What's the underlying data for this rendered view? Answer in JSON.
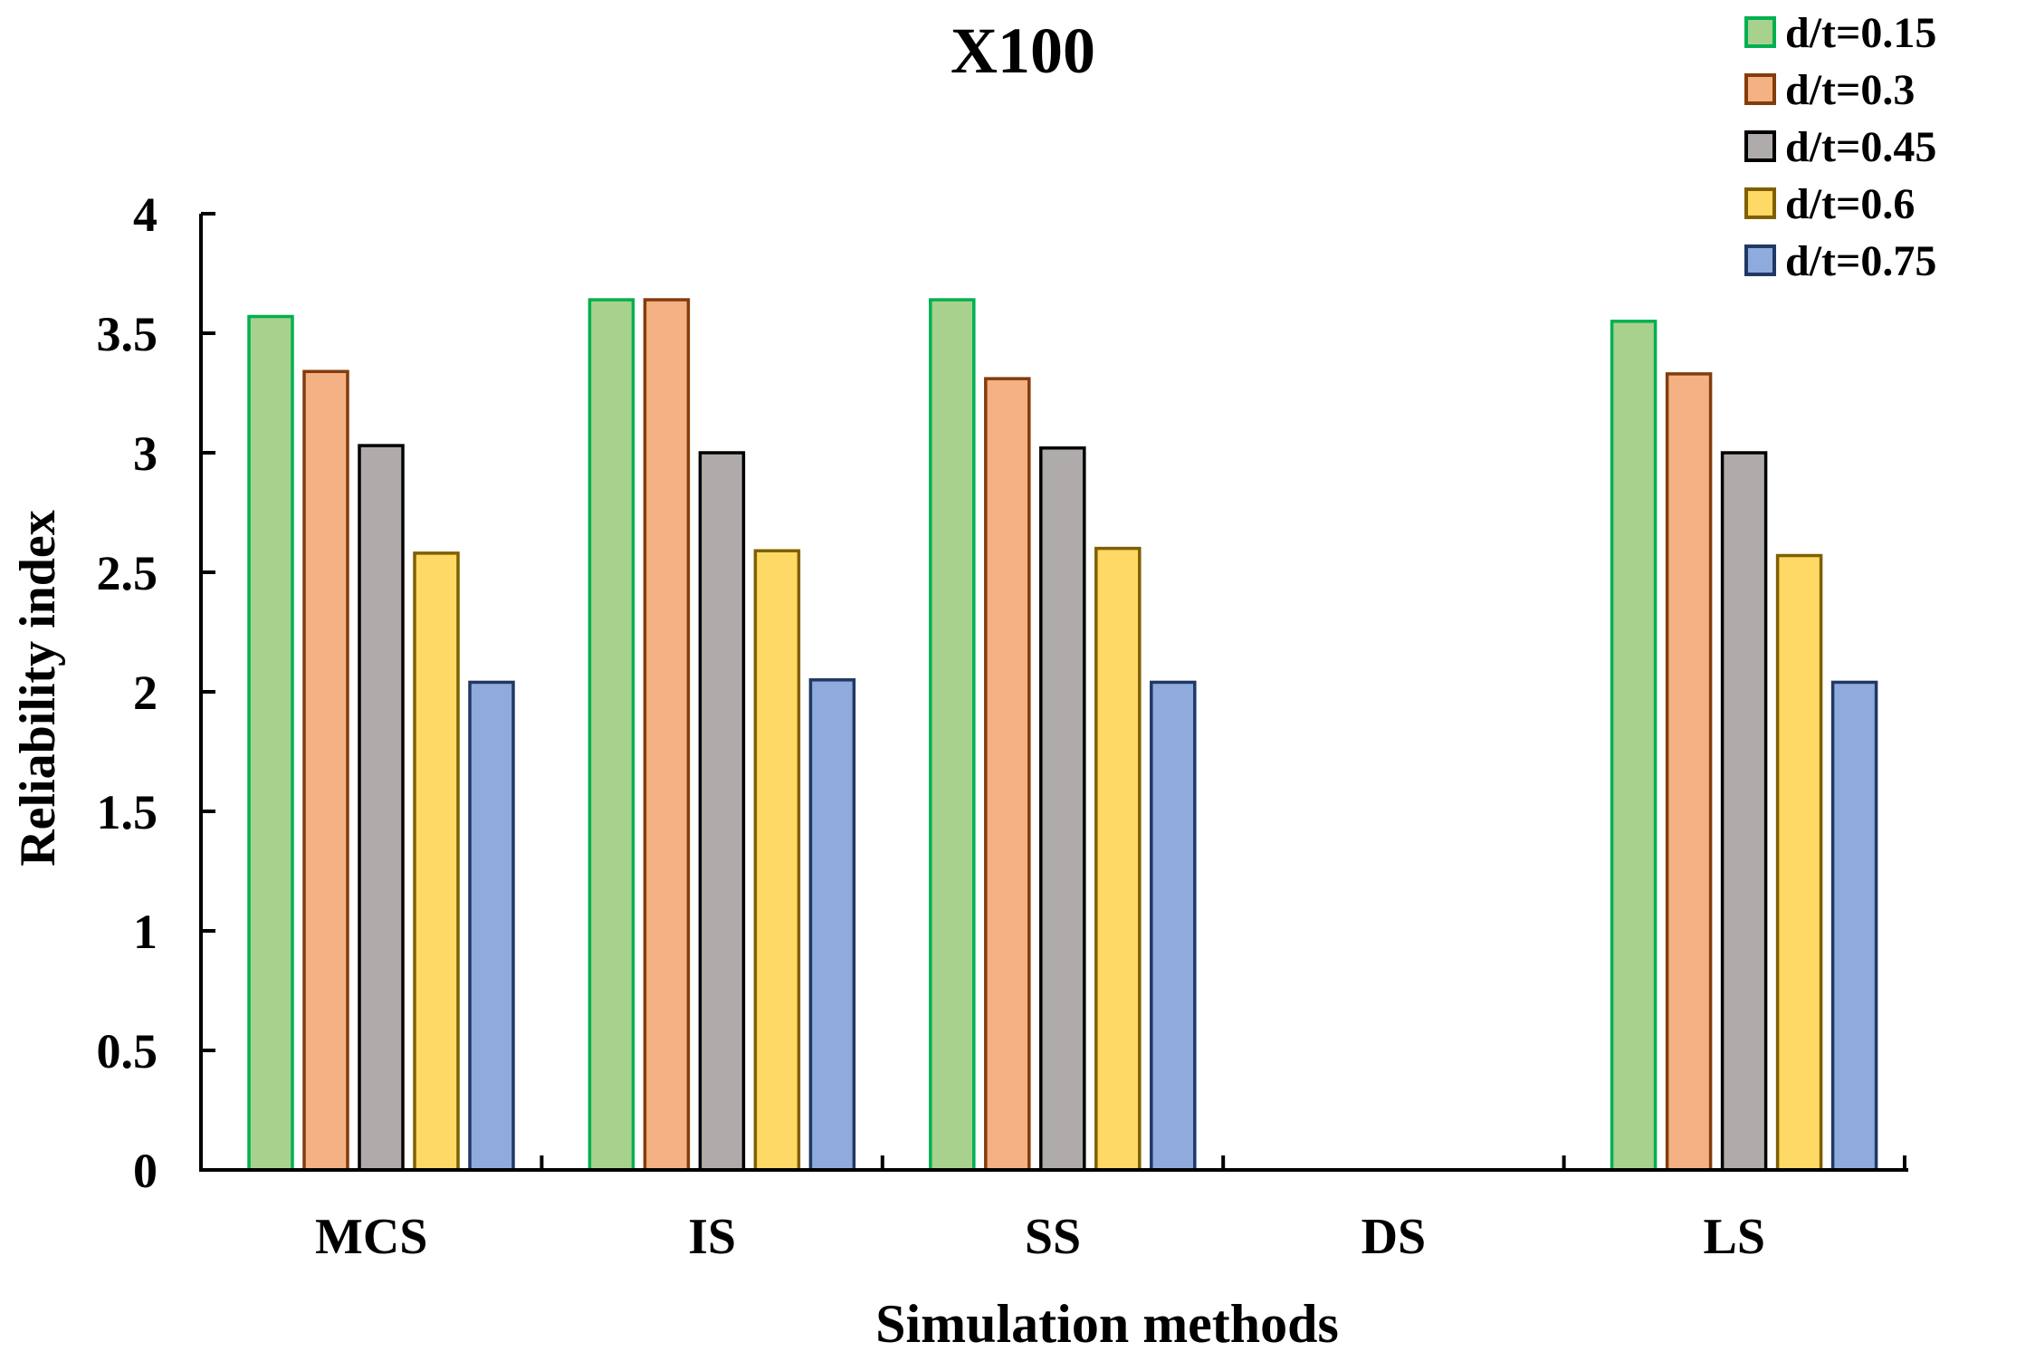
{
  "chart_data": {
    "type": "bar",
    "title": "X100",
    "xlabel": "Simulation methods",
    "ylabel": "Reliability index",
    "ylim": [
      0,
      4
    ],
    "yticks": [
      "0",
      "0.5",
      "1",
      "1.5",
      "2",
      "2.5",
      "3",
      "3.5",
      "4"
    ],
    "categories": [
      "MCS",
      "IS",
      "SS",
      "DS",
      "LS"
    ],
    "legend_position": "top-right",
    "series": [
      {
        "name": "d/t=0.15",
        "fill": "#a9d18e",
        "stroke": "#00b050",
        "values": [
          3.57,
          3.64,
          3.64,
          null,
          3.55
        ]
      },
      {
        "name": "d/t=0.3",
        "fill": "#f4b183",
        "stroke": "#843c0c",
        "values": [
          3.34,
          3.64,
          3.31,
          null,
          3.33
        ]
      },
      {
        "name": "d/t=0.45",
        "fill": "#afabab",
        "stroke": "#000000",
        "values": [
          3.03,
          3.0,
          3.02,
          null,
          3.0
        ]
      },
      {
        "name": "d/t=0.6",
        "fill": "#ffd966",
        "stroke": "#7f6000",
        "values": [
          2.58,
          2.59,
          2.6,
          null,
          2.57
        ]
      },
      {
        "name": "d/t=0.75",
        "fill": "#8faadc",
        "stroke": "#203864",
        "values": [
          2.04,
          2.05,
          2.04,
          null,
          2.04
        ]
      }
    ]
  }
}
